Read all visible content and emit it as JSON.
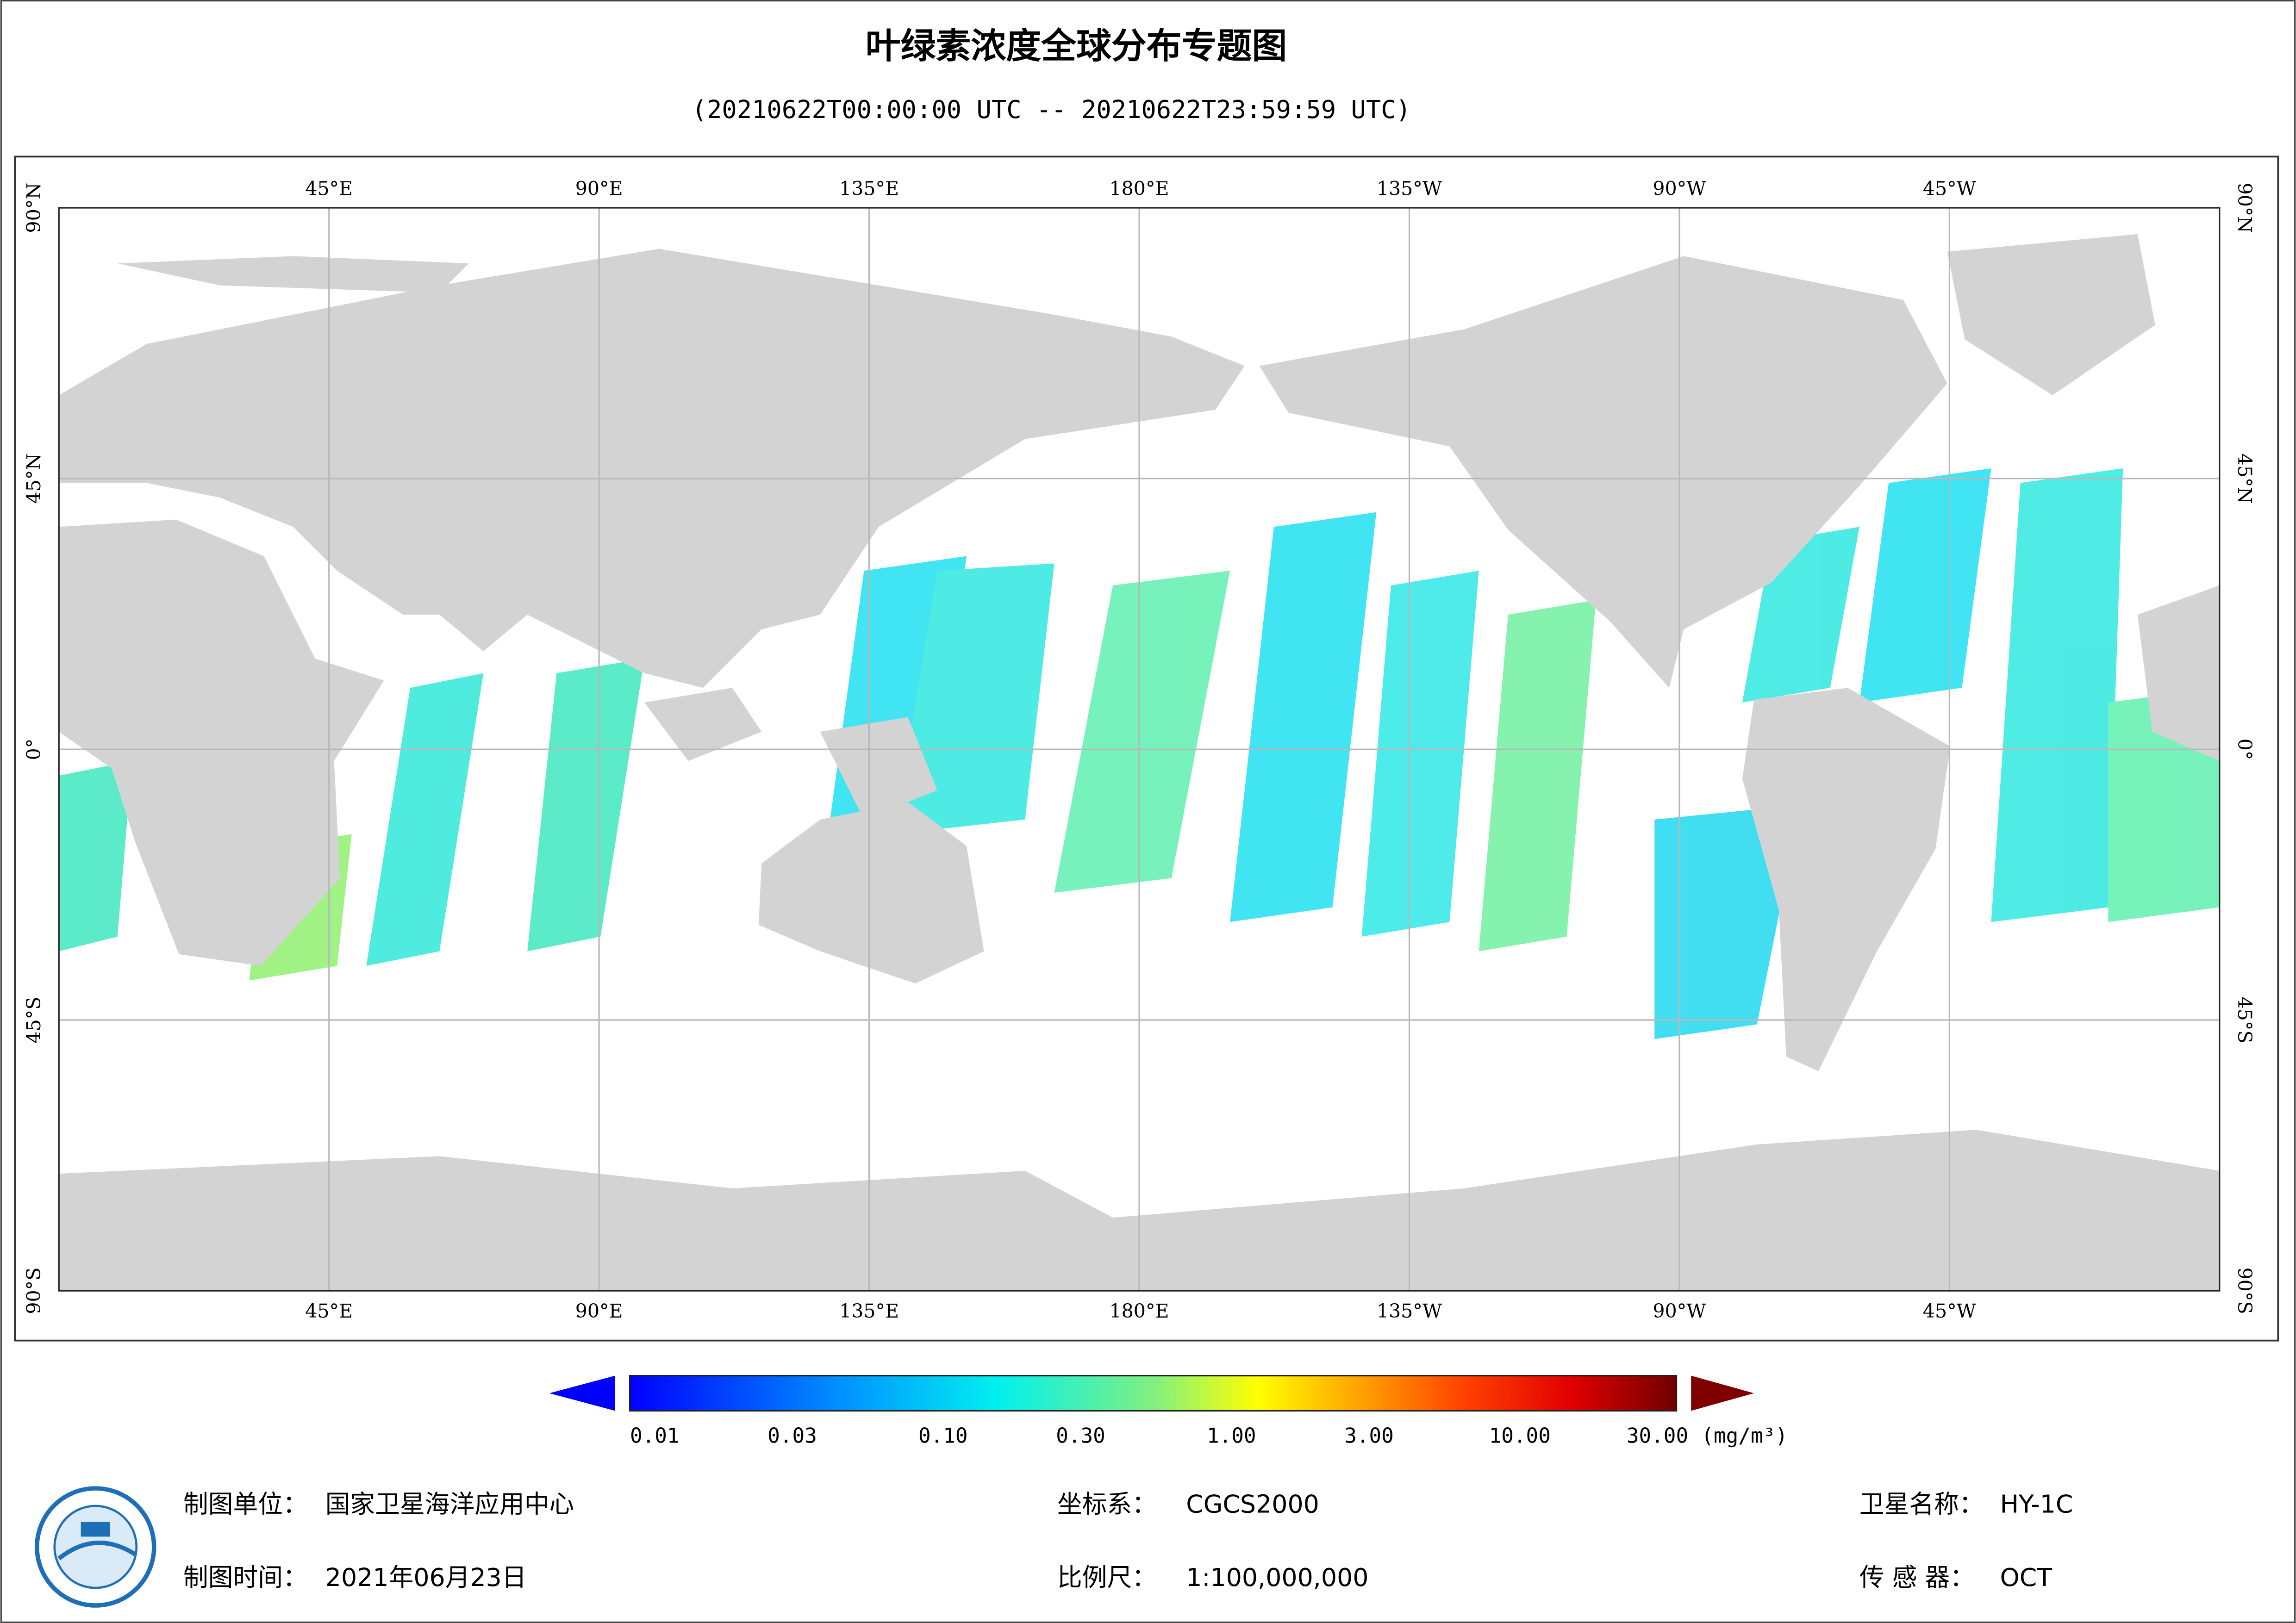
{
  "title": "叶绿素浓度全球分布专题图",
  "subtitle": "(20210622T00:00:00 UTC -- 20210622T23:59:59 UTC)",
  "map": {
    "lon_labels": [
      "45°E",
      "90°E",
      "135°E",
      "180°E",
      "135°W",
      "90°W",
      "45°W"
    ],
    "lat_labels": [
      "90°N",
      "45°N",
      "0°",
      "45°S",
      "90°S"
    ]
  },
  "colorbar": {
    "ticks": [
      0.01,
      0.03,
      {
        "value": 0.1,
        "label": "0.10"
      },
      {
        "value": 0.3,
        "label": "0.30"
      },
      {
        "value": 1,
        "label": "1.00"
      },
      {
        "value": 3,
        "label": "3.00"
      },
      {
        "value": 10,
        "label": "10.00"
      },
      {
        "value": 30,
        "label": "30.00"
      }
    ],
    "unit": "(mg/m³)"
  },
  "footer": {
    "unit_label": "制图单位：",
    "unit_value": "国家卫星海洋应用中心",
    "time_label": "制图时间：",
    "time_value": "2021年06月23日",
    "crs_label": "坐标系：",
    "crs_value": "CGCS2000",
    "scale_label": "比例尺：",
    "scale_value": "1:100,000,000",
    "satellite_label": "卫星名称：",
    "satellite_value": "HY-1C",
    "sensor_label": "传 感 器：",
    "sensor_value": "OCT"
  }
}
